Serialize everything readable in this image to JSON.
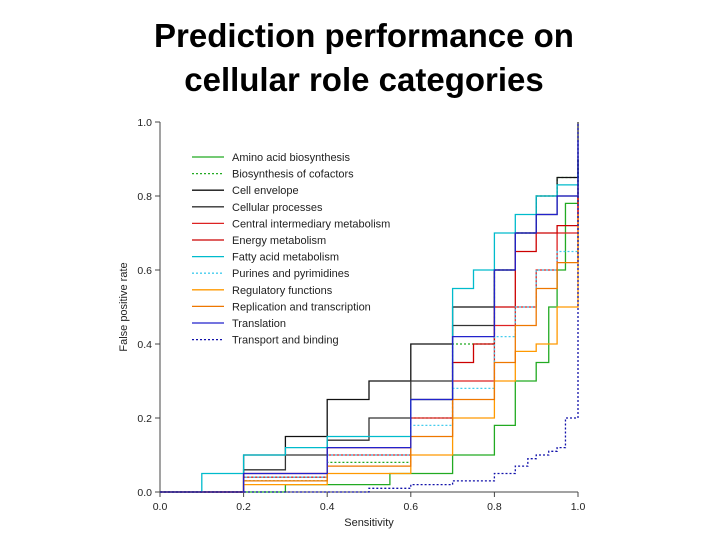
{
  "slide": {
    "title_line1": "Prediction performance on",
    "title_line2": "cellular role categories"
  },
  "chart_data": {
    "type": "line",
    "xlabel": "Sensitivity",
    "ylabel": "False positive rate",
    "xlim": [
      0,
      1
    ],
    "ylim": [
      0,
      1
    ],
    "xticks": [
      "0.0",
      "0.2",
      "0.4",
      "0.6",
      "0.8",
      "1.0"
    ],
    "yticks": [
      "0.0",
      "0.2",
      "0.4",
      "0.6",
      "0.8",
      "1.0"
    ],
    "legend_position": "top-left",
    "grid": false,
    "series": [
      {
        "name": "Amino acid biosynthesis",
        "color": "#22aa22",
        "dash": "",
        "x": [
          0,
          0.3,
          0.55,
          0.7,
          0.8,
          0.85,
          0.9,
          0.93,
          0.95,
          0.97,
          1.0
        ],
        "y": [
          0,
          0.02,
          0.05,
          0.1,
          0.18,
          0.3,
          0.35,
          0.5,
          0.6,
          0.78,
          0.9
        ]
      },
      {
        "name": "Biosynthesis of cofactors",
        "color": "#22aa22",
        "dash": "2,2",
        "x": [
          0,
          0.2,
          0.4,
          0.6,
          0.7,
          0.8,
          0.85,
          0.9,
          0.95,
          1.0
        ],
        "y": [
          0,
          0.03,
          0.08,
          0.2,
          0.4,
          0.6,
          0.7,
          0.8,
          0.85,
          0.88
        ]
      },
      {
        "name": "Cell envelope",
        "color": "#111111",
        "dash": "",
        "x": [
          0,
          0.2,
          0.3,
          0.4,
          0.5,
          0.6,
          0.7,
          0.8,
          0.85,
          0.9,
          0.95,
          1.0
        ],
        "y": [
          0,
          0.1,
          0.15,
          0.25,
          0.3,
          0.4,
          0.5,
          0.6,
          0.7,
          0.8,
          0.85,
          0.9
        ]
      },
      {
        "name": "Cellular processes",
        "color": "#333333",
        "dash": "",
        "x": [
          0,
          0.2,
          0.3,
          0.4,
          0.5,
          0.6,
          0.7,
          0.8,
          0.85,
          0.9,
          0.95,
          1.0
        ],
        "y": [
          0,
          0.06,
          0.1,
          0.14,
          0.2,
          0.3,
          0.45,
          0.6,
          0.7,
          0.75,
          0.8,
          1.0
        ]
      },
      {
        "name": "Central intermediary metabolism",
        "color": "#dd2222",
        "dash": "",
        "x": [
          0,
          0.2,
          0.4,
          0.6,
          0.7,
          0.8,
          0.85,
          0.9,
          0.95,
          1.0
        ],
        "y": [
          0,
          0.04,
          0.1,
          0.2,
          0.3,
          0.45,
          0.5,
          0.6,
          0.7,
          0.85
        ]
      },
      {
        "name": "Energy metabolism",
        "color": "#cc0000",
        "dash": "",
        "x": [
          0,
          0.2,
          0.4,
          0.6,
          0.7,
          0.75,
          0.8,
          0.85,
          0.9,
          0.95,
          1.0
        ],
        "y": [
          0,
          0.05,
          0.12,
          0.25,
          0.35,
          0.4,
          0.5,
          0.65,
          0.7,
          0.72,
          0.8
        ]
      },
      {
        "name": "Fatty acid metabolism",
        "color": "#00bbcc",
        "dash": "",
        "x": [
          0,
          0.1,
          0.2,
          0.3,
          0.4,
          0.5,
          0.6,
          0.7,
          0.75,
          0.8,
          0.85,
          0.9,
          0.95,
          1.0
        ],
        "y": [
          0,
          0.05,
          0.1,
          0.12,
          0.15,
          0.15,
          0.25,
          0.55,
          0.6,
          0.7,
          0.75,
          0.8,
          0.83,
          0.86
        ]
      },
      {
        "name": "Purines and pyrimidines",
        "color": "#44ccee",
        "dash": "2,2",
        "x": [
          0,
          0.2,
          0.4,
          0.6,
          0.7,
          0.8,
          0.85,
          0.9,
          0.95,
          1.0
        ],
        "y": [
          0,
          0.04,
          0.1,
          0.18,
          0.28,
          0.42,
          0.5,
          0.6,
          0.65,
          0.75
        ]
      },
      {
        "name": "Regulatory functions",
        "color": "#ff9900",
        "dash": "",
        "x": [
          0,
          0.2,
          0.4,
          0.6,
          0.7,
          0.8,
          0.85,
          0.9,
          0.95,
          1.0
        ],
        "y": [
          0,
          0.02,
          0.05,
          0.1,
          0.2,
          0.3,
          0.38,
          0.4,
          0.5,
          0.7
        ]
      },
      {
        "name": "Replication and transcription",
        "color": "#ee7700",
        "dash": "",
        "x": [
          0,
          0.2,
          0.4,
          0.6,
          0.7,
          0.8,
          0.85,
          0.9,
          0.95,
          1.0
        ],
        "y": [
          0,
          0.03,
          0.07,
          0.15,
          0.25,
          0.35,
          0.45,
          0.55,
          0.62,
          0.75
        ]
      },
      {
        "name": "Translation",
        "color": "#2222cc",
        "dash": "",
        "x": [
          0,
          0.2,
          0.4,
          0.6,
          0.7,
          0.8,
          0.85,
          0.9,
          0.95,
          1.0
        ],
        "y": [
          0,
          0.05,
          0.12,
          0.25,
          0.42,
          0.6,
          0.7,
          0.75,
          0.8,
          0.95
        ]
      },
      {
        "name": "Transport and binding",
        "color": "#1111aa",
        "dash": "2,2",
        "x": [
          0,
          0.3,
          0.5,
          0.6,
          0.7,
          0.8,
          0.85,
          0.88,
          0.9,
          0.93,
          0.95,
          0.97,
          1.0
        ],
        "y": [
          0,
          0,
          0.01,
          0.02,
          0.03,
          0.05,
          0.07,
          0.09,
          0.1,
          0.11,
          0.12,
          0.2,
          1.0
        ]
      }
    ]
  }
}
